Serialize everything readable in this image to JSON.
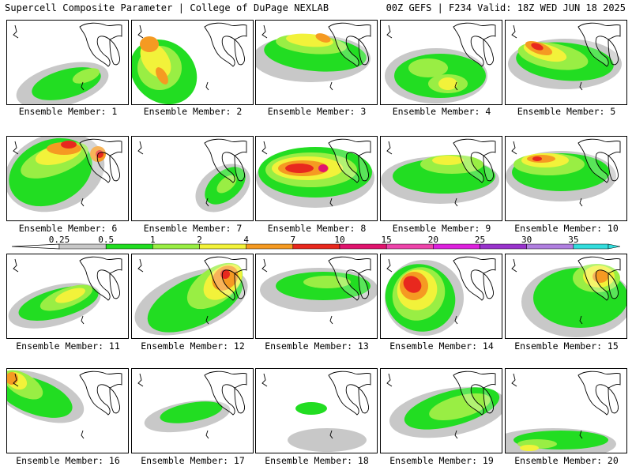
{
  "header": {
    "title_left": "Supercell Composite Parameter | College of DuPage NEXLAB",
    "title_right": "00Z GEFS | F234 Valid: 18Z WED JUN 18 2025"
  },
  "colors": {
    "gray": "#c8c8c8",
    "green": "#22dd22",
    "lightgreen": "#99ee44",
    "yellow": "#f2f23a",
    "orange": "#f59a22",
    "red": "#e8281e",
    "crimson": "#e0146e",
    "pink": "#ee44aa",
    "magenta": "#dd22dd",
    "purple": "#9933cc",
    "lavender": "#b07fe0",
    "cyan": "#33dddd"
  },
  "legend": {
    "labels": [
      "0.25",
      "0.5",
      "1",
      "2",
      "4",
      "7",
      "10",
      "15",
      "20",
      "25",
      "30",
      "35"
    ]
  },
  "panels": [
    {
      "caption": "Ensemble Member: 1"
    },
    {
      "caption": "Ensemble Member: 2"
    },
    {
      "caption": "Ensemble Member: 3"
    },
    {
      "caption": "Ensemble Member: 4"
    },
    {
      "caption": "Ensemble Member: 5"
    },
    {
      "caption": "Ensemble Member: 6"
    },
    {
      "caption": "Ensemble Member: 7"
    },
    {
      "caption": "Ensemble Member: 8"
    },
    {
      "caption": "Ensemble Member: 9"
    },
    {
      "caption": "Ensemble Member: 10"
    },
    {
      "caption": "Ensemble Member: 11"
    },
    {
      "caption": "Ensemble Member: 12"
    },
    {
      "caption": "Ensemble Member: 13"
    },
    {
      "caption": "Ensemble Member: 14"
    },
    {
      "caption": "Ensemble Member: 15"
    },
    {
      "caption": "Ensemble Member: 16"
    },
    {
      "caption": "Ensemble Member: 17"
    },
    {
      "caption": "Ensemble Member: 18"
    },
    {
      "caption": "Ensemble Member: 19"
    },
    {
      "caption": "Ensemble Member: 20"
    }
  ]
}
